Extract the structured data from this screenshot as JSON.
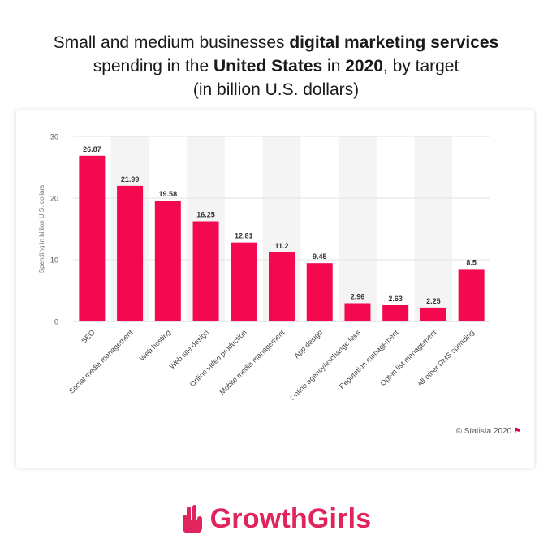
{
  "title": {
    "line1_pre": "Small and medium businesses ",
    "line1_bold": "digital marketing services",
    "line2_pre": "spending in the ",
    "line2_bold1": "United States",
    "line2_mid": " in ",
    "line2_bold2": "2020",
    "line2_post": ", by target",
    "line3": "(in billion U.S. dollars)"
  },
  "credit": "© Statista 2020",
  "logo_text": "GrowthGirls",
  "colors": {
    "bar": "#f2094f",
    "logo": "#e0245e",
    "band": "#f4f4f4",
    "grid": "#e2e2e2"
  },
  "chart_data": {
    "type": "bar",
    "categories": [
      "SEO",
      "Social media management",
      "Web hosting",
      "Web site design",
      "Online video production",
      "Mobile media management",
      "App design",
      "Online agency/exchange fees",
      "Reputation management",
      "Opt-in list management",
      "All other DMS spending"
    ],
    "values": [
      26.87,
      21.99,
      19.58,
      16.25,
      12.81,
      11.2,
      9.45,
      2.96,
      2.63,
      2.25,
      8.5
    ],
    "value_labels": [
      "26.87",
      "21.99",
      "19.58",
      "16.25",
      "12.81",
      "11.2",
      "9.45",
      "2.96",
      "2.63",
      "2.25",
      "8.5"
    ],
    "ylabel": "Spending in billion U.S. dollars",
    "yticks": [
      "0",
      "10",
      "20",
      "30"
    ],
    "ylim": [
      0,
      30
    ],
    "grid": true
  }
}
